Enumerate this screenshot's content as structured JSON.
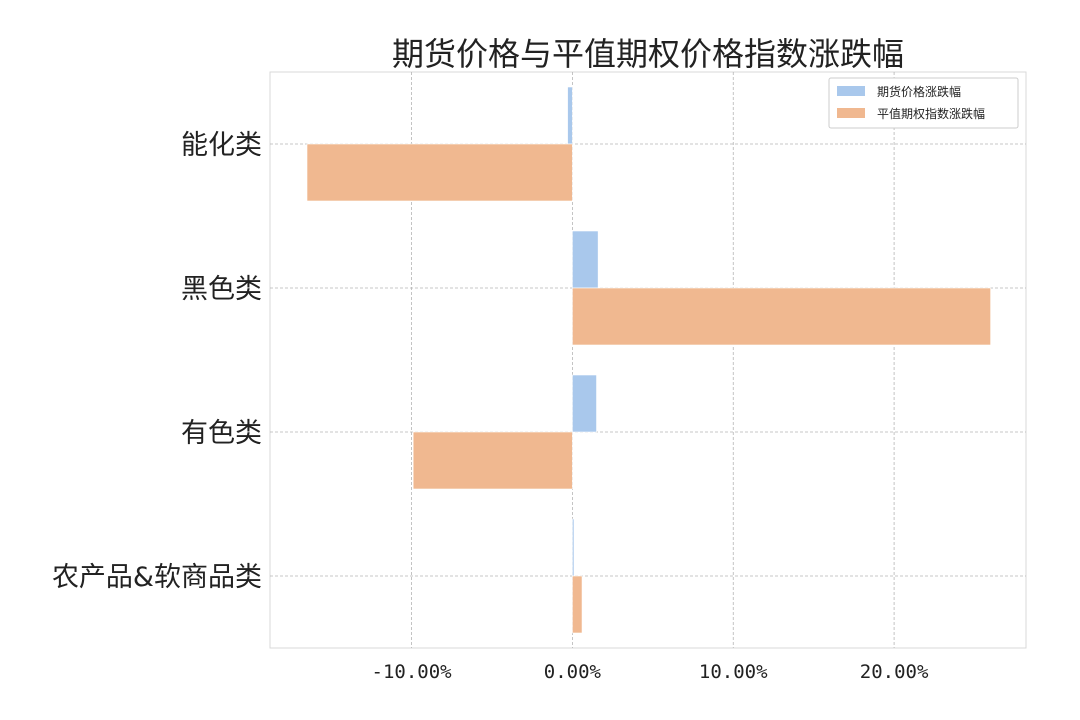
{
  "chart_data": {
    "type": "bar",
    "orientation": "horizontal",
    "title": "期货价格与平值期权价格指数涨跌幅",
    "categories": [
      "能化类",
      "黑色类",
      "有色类",
      "农产品&软商品类"
    ],
    "series": [
      {
        "name": "期货价格涨跌幅",
        "color": "#a9c8ec",
        "values": [
          -0.3,
          1.6,
          1.5,
          0.1
        ]
      },
      {
        "name": "平值期权指数涨跌幅",
        "color": "#f0b890",
        "values": [
          -16.5,
          26.0,
          -9.9,
          0.6
        ]
      }
    ],
    "xlim": [
      -18.8,
      28.2
    ],
    "xticks": [
      {
        "value": -10,
        "label": "-10.00%"
      },
      {
        "value": 0,
        "label": "0.00%"
      },
      {
        "value": 10,
        "label": "10.00%"
      },
      {
        "value": 20,
        "label": "20.00%"
      }
    ],
    "grid": true,
    "legend_position": "top-right"
  }
}
